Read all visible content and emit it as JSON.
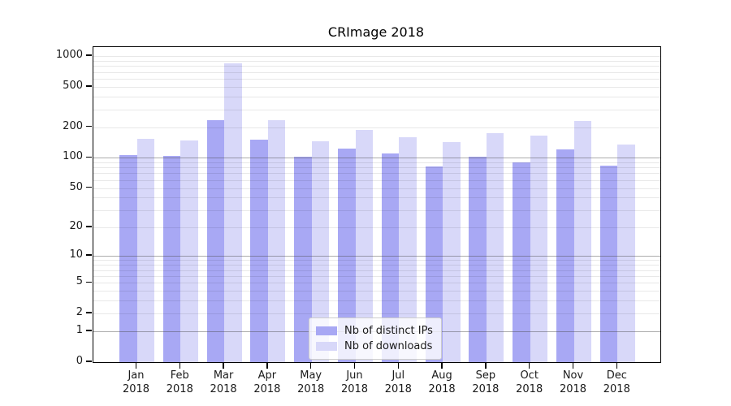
{
  "chart_data": {
    "type": "bar",
    "title": "CRImage 2018",
    "year_label": "2018",
    "categories": [
      "Jan",
      "Feb",
      "Mar",
      "Apr",
      "May",
      "Jun",
      "Jul",
      "Aug",
      "Sep",
      "Oct",
      "Nov",
      "Dec"
    ],
    "series": [
      {
        "name": "Nb of distinct IPs",
        "color": "#a8a8f4",
        "values": [
          107,
          105,
          237,
          152,
          103,
          123,
          111,
          82,
          102,
          90,
          120,
          84
        ]
      },
      {
        "name": "Nb of downloads",
        "color": "#d8d8f9",
        "values": [
          155,
          148,
          850,
          237,
          145,
          188,
          160,
          142,
          176,
          166,
          230,
          135
        ]
      }
    ],
    "yscale": "log1p",
    "ylim": [
      0,
      1190
    ],
    "yticks": [
      1000,
      500,
      200,
      100,
      50,
      20,
      10,
      5,
      2,
      1,
      0
    ],
    "y_major_gridlines": [
      1,
      10,
      100
    ],
    "y_minor_gridlines": [
      2,
      3,
      4,
      5,
      6,
      7,
      8,
      9,
      20,
      30,
      40,
      50,
      60,
      70,
      80,
      90,
      200,
      300,
      400,
      500,
      600,
      700,
      800,
      900,
      1000
    ],
    "grid": true,
    "legend_position": "lower-center-inside"
  }
}
